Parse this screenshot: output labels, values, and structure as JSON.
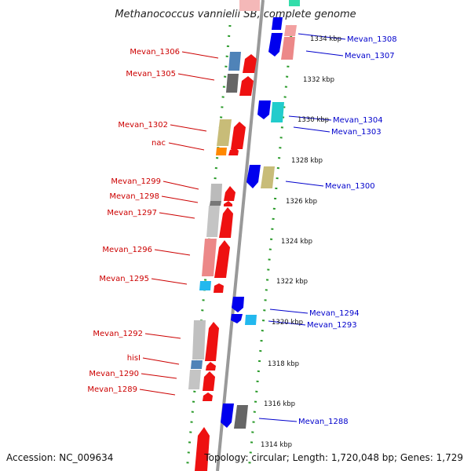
{
  "title": "Methanococcus vannielii SB, complete genome",
  "footer": {
    "accession": "Accession: NC_009634",
    "summary": "Topology: circular; Length: 1,720,048 bp; Genes: 1,729"
  },
  "colors": {
    "reverse_strand_label": "#cc0000",
    "forward_strand_label": "#0000cc",
    "backbone": "#999999",
    "dots": "#2a9a2a"
  },
  "kbp_ticks": [
    "1334 kbp",
    "1332 kbp",
    "1330 kbp",
    "1328 kbp",
    "1326 kbp",
    "1324 kbp",
    "1322 kbp",
    "1320 kbp",
    "1318 kbp",
    "1316 kbp",
    "1314 kbp"
  ],
  "left_labels": [
    "Mevan_1306",
    "Mevan_1305",
    "Mevan_1302",
    "nac",
    "Mevan_1299",
    "Mevan_1298",
    "Mevan_1297",
    "Mevan_1296",
    "Mevan_1295",
    "Mevan_1292",
    "hisI",
    "Mevan_1290",
    "Mevan_1289"
  ],
  "right_labels": [
    "Mevan_1308",
    "Mevan_1307",
    "Mevan_1304",
    "Mevan_1303",
    "Mevan_1300",
    "Mevan_1294",
    "Mevan_1293",
    "Mevan_1288"
  ]
}
